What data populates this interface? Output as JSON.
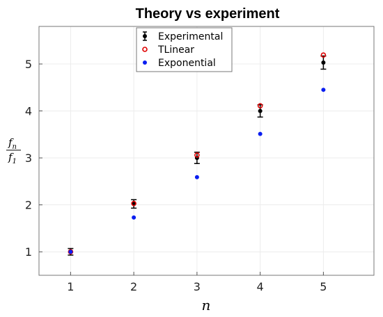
{
  "chart_data": {
    "type": "scatter",
    "title": "Theory vs experiment",
    "xlabel": "n",
    "ylabel": {
      "numerator": "f",
      "numerator_sub": "n",
      "denominator": "f",
      "denominator_sub": "1"
    },
    "xlim": [
      0.5,
      5.8
    ],
    "ylim": [
      0.5,
      5.8
    ],
    "xticks": [
      1,
      2,
      3,
      4,
      5
    ],
    "yticks": [
      1,
      2,
      3,
      4,
      5
    ],
    "grid": true,
    "legend_position": "top-center",
    "series": [
      {
        "name": "Experimental",
        "marker": "filled-dot-errorbar",
        "color": "#000000",
        "x": [
          1,
          2,
          3,
          4,
          5
        ],
        "y": [
          1.0,
          2.02,
          3.0,
          4.0,
          5.03
        ],
        "err": [
          0.07,
          0.09,
          0.12,
          0.13,
          0.14
        ]
      },
      {
        "name": "TLinear",
        "marker": "open-circle",
        "color": "#e00000",
        "x": [
          1,
          2,
          3,
          4,
          5
        ],
        "y": [
          1.0,
          2.03,
          3.06,
          4.11,
          5.19
        ]
      },
      {
        "name": "Exponential",
        "marker": "filled-dot",
        "color": "#0a1ef0",
        "x": [
          1,
          2,
          3,
          4,
          5
        ],
        "y": [
          1.0,
          1.73,
          2.59,
          3.51,
          4.45
        ]
      }
    ]
  }
}
